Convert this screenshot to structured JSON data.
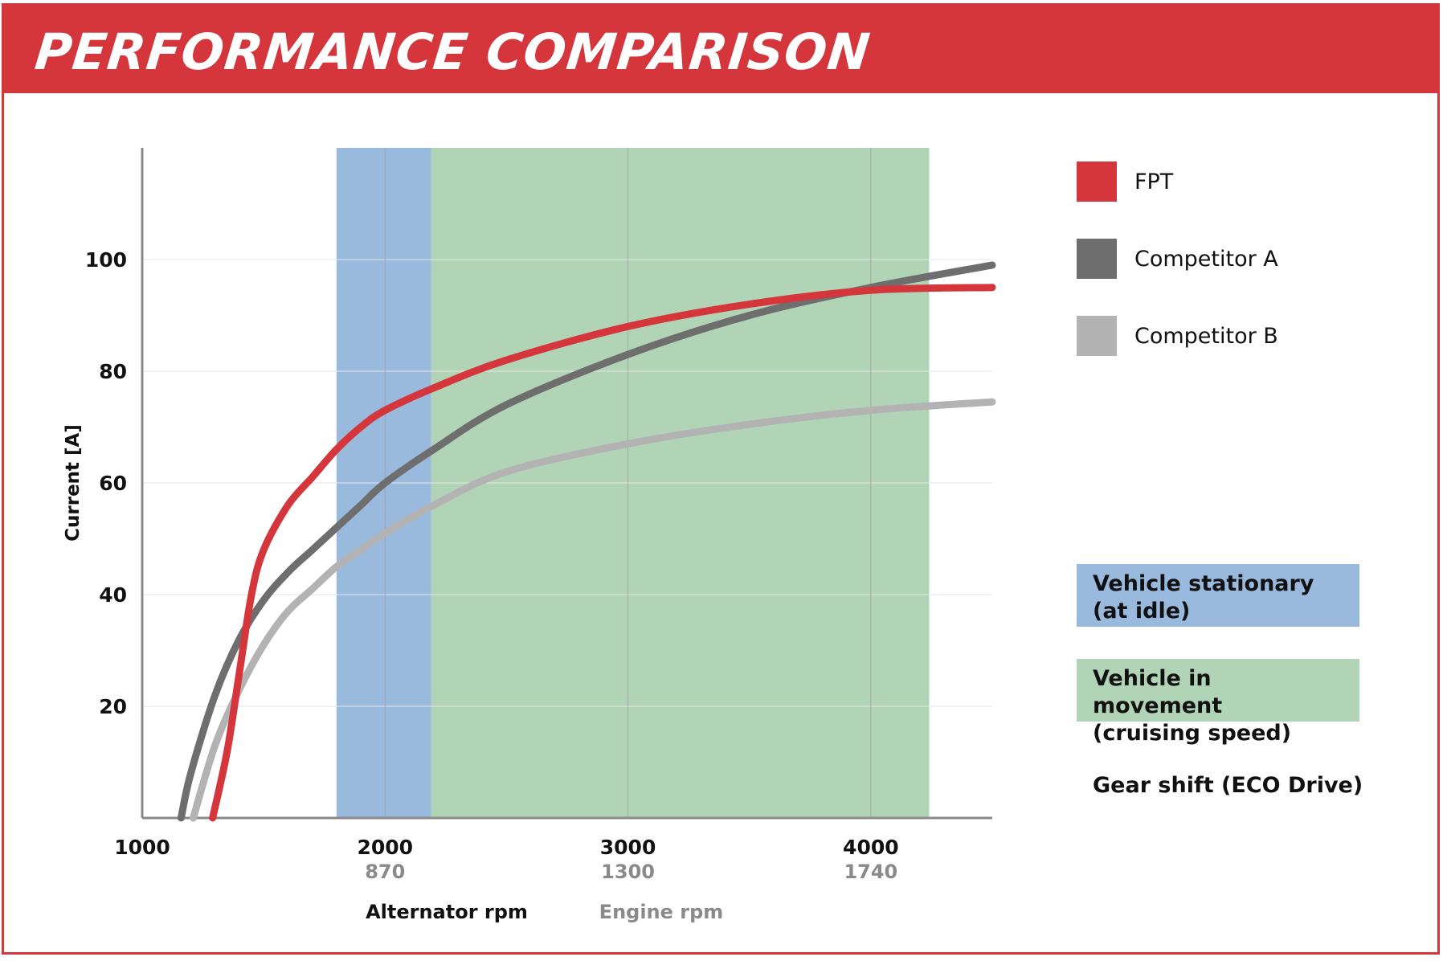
{
  "title": "PERFORMANCE COMPARISON",
  "colors": {
    "brand_red": "#d4363c",
    "fpt": "#d4363c",
    "competitor_a": "#6e6e6e",
    "competitor_b": "#b3b3b3",
    "stationary_zone": "#99b9dd",
    "movement_zone": "#b1d4b7"
  },
  "legend": {
    "items": [
      {
        "label": "FPT",
        "color": "#d4363c"
      },
      {
        "label": "Competitor A",
        "color": "#6e6e6e"
      },
      {
        "label": "Competitor B",
        "color": "#b3b3b3"
      }
    ],
    "zones": [
      {
        "line1": "Vehicle stationary",
        "line2": "(at idle)",
        "color": "#99b9dd"
      },
      {
        "line1": "Vehicle in movement",
        "line2": "(cruising speed)",
        "color": "#b1d4b7"
      }
    ],
    "gear_shift": "Gear shift (ECO Drive)"
  },
  "chart_data": {
    "type": "line",
    "ylabel": "Current [A]",
    "xlabel": "Alternator rpm",
    "xlabel_secondary": "Engine rpm",
    "xlim": [
      1000,
      4500
    ],
    "ylim": [
      0,
      120
    ],
    "grid": true,
    "legend_position": "right",
    "y_ticks": [
      20,
      40,
      60,
      80,
      100
    ],
    "x_ticks": [
      {
        "value": 1000,
        "label": "1000",
        "engine": ""
      },
      {
        "value": 2000,
        "label": "2000",
        "engine": "870"
      },
      {
        "value": 3000,
        "label": "3000",
        "engine": "1300"
      },
      {
        "value": 4000,
        "label": "4000",
        "engine": "1740"
      }
    ],
    "bands": [
      {
        "name": "Vehicle stationary (at idle)",
        "x": [
          1800,
          2190
        ]
      },
      {
        "name": "Vehicle in movement (cruising speed)",
        "x": [
          2190,
          4240
        ]
      }
    ],
    "series": [
      {
        "name": "FPT",
        "x": [
          1290,
          1350,
          1400,
          1450,
          1500,
          1600,
          1700,
          1800,
          1900,
          2000,
          2200,
          2500,
          3000,
          3500,
          4000,
          4500
        ],
        "y": [
          0,
          12,
          26,
          40,
          48,
          56,
          61,
          66,
          70,
          73,
          77,
          82,
          88,
          92,
          94.5,
          95
        ]
      },
      {
        "name": "Competitor A",
        "x": [
          1160,
          1200,
          1300,
          1400,
          1500,
          1600,
          1700,
          1800,
          1900,
          2000,
          2200,
          2500,
          3000,
          3500,
          4000,
          4500
        ],
        "y": [
          0,
          8,
          22,
          32,
          39,
          44,
          48,
          52,
          56,
          60,
          66,
          74,
          83,
          90,
          95,
          99
        ]
      },
      {
        "name": "Competitor B",
        "x": [
          1210,
          1300,
          1400,
          1500,
          1600,
          1700,
          1800,
          1900,
          2000,
          2200,
          2500,
          3000,
          3500,
          4000,
          4500
        ],
        "y": [
          0,
          13,
          23,
          31,
          37,
          41,
          45,
          48,
          51,
          56,
          62,
          67,
          70.5,
          73,
          74.5
        ]
      }
    ]
  }
}
